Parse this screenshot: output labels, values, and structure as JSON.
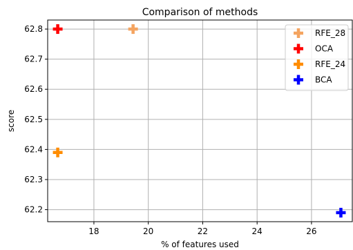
{
  "chart_data": {
    "type": "scatter",
    "title": "Comparison of methods",
    "xlabel": "% of features used",
    "ylabel": "score",
    "xlim": [
      16.3,
      27.5
    ],
    "ylim": [
      62.16,
      62.83
    ],
    "xticks": [
      18,
      20,
      22,
      24,
      26
    ],
    "yticks": [
      62.2,
      62.3,
      62.4,
      62.5,
      62.6,
      62.7,
      62.8
    ],
    "grid": true,
    "legend_position": "top-right",
    "marker": "plus",
    "series": [
      {
        "name": "RFE_28",
        "color": "#f4a460",
        "points": [
          {
            "x": 19.44,
            "y": 62.8
          }
        ]
      },
      {
        "name": "OCA",
        "color": "#ff0000",
        "points": [
          {
            "x": 16.67,
            "y": 62.8
          }
        ]
      },
      {
        "name": "RFE_24",
        "color": "#ff8c00",
        "points": [
          {
            "x": 16.67,
            "y": 62.39
          }
        ]
      },
      {
        "name": "BCA",
        "color": "#0000ff",
        "points": [
          {
            "x": 27.08,
            "y": 62.19
          }
        ]
      }
    ]
  }
}
